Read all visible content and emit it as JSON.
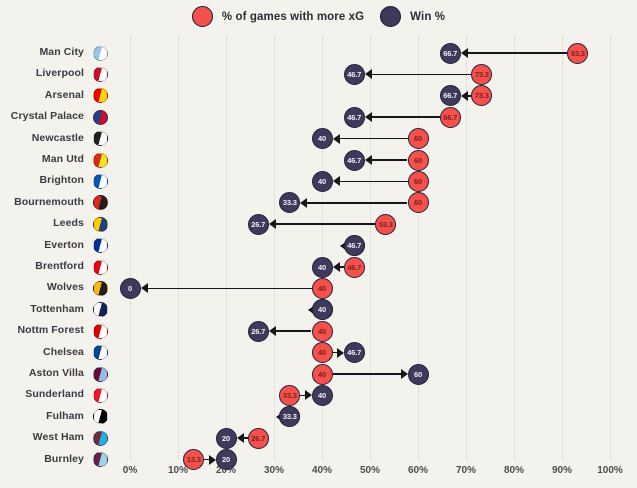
{
  "legend": {
    "items": [
      {
        "label": "% of games with more xG",
        "color": "#f4504c"
      },
      {
        "label": "Win %",
        "color": "#3e3a5c"
      }
    ]
  },
  "chart_data": {
    "type": "dumbbell",
    "title": "",
    "xlabel": "",
    "ylabel": "",
    "x_range": [
      0,
      100
    ],
    "x_ticks": [
      "0%",
      "10%",
      "20%",
      "30%",
      "40%",
      "50%",
      "60%",
      "70%",
      "80%",
      "90%",
      "100%"
    ],
    "grid": "dotted-vertical",
    "legend_position": "top-center",
    "series": [
      {
        "name": "% of games with more xG",
        "color": "#f4504c",
        "value_text_color": "#7e2022"
      },
      {
        "name": "Win %",
        "color": "#3e3a5c",
        "value_text_color": "#f3edf0"
      }
    ],
    "arrow_direction": "from xG% circle to Win% circle",
    "teams": [
      {
        "name": "Man City",
        "xg_more_pct": 93.3,
        "win_pct": 66.7,
        "badge": [
          "#98c5e9",
          "#ffffff"
        ]
      },
      {
        "name": "Liverpool",
        "xg_more_pct": 73.3,
        "win_pct": 46.7,
        "badge": [
          "#c8102e",
          "#ffffff"
        ]
      },
      {
        "name": "Arsenal",
        "xg_more_pct": 73.3,
        "win_pct": 66.7,
        "badge": [
          "#ef0107",
          "#ffd700"
        ]
      },
      {
        "name": "Crystal Palace",
        "xg_more_pct": 66.7,
        "win_pct": 46.7,
        "badge": [
          "#1b458f",
          "#c4122e"
        ]
      },
      {
        "name": "Newcastle",
        "xg_more_pct": 60,
        "win_pct": 40,
        "badge": [
          "#241f20",
          "#ffffff"
        ]
      },
      {
        "name": "Man Utd",
        "xg_more_pct": 60,
        "win_pct": 46.7,
        "badge": [
          "#da291c",
          "#fbe122"
        ]
      },
      {
        "name": "Brighton",
        "xg_more_pct": 60,
        "win_pct": 40,
        "badge": [
          "#0057b8",
          "#ffffff"
        ]
      },
      {
        "name": "Bournemouth",
        "xg_more_pct": 60,
        "win_pct": 33.3,
        "badge": [
          "#da291c",
          "#231f20"
        ]
      },
      {
        "name": "Leeds",
        "xg_more_pct": 53.3,
        "win_pct": 26.7,
        "badge": [
          "#ffcd00",
          "#1d428a"
        ]
      },
      {
        "name": "Everton",
        "xg_more_pct": 46.7,
        "win_pct": 46.7,
        "badge": [
          "#003399",
          "#ffffff"
        ]
      },
      {
        "name": "Brentford",
        "xg_more_pct": 46.7,
        "win_pct": 40,
        "badge": [
          "#e30613",
          "#ffffff"
        ]
      },
      {
        "name": "Wolves",
        "xg_more_pct": 40,
        "win_pct": 0,
        "badge": [
          "#fdb913",
          "#231f20"
        ]
      },
      {
        "name": "Tottenham",
        "xg_more_pct": 40,
        "win_pct": 40,
        "badge": [
          "#ffffff",
          "#132257"
        ]
      },
      {
        "name": "Nottm Forest",
        "xg_more_pct": 40,
        "win_pct": 26.7,
        "badge": [
          "#dd0000",
          "#ffffff"
        ]
      },
      {
        "name": "Chelsea",
        "xg_more_pct": 40,
        "win_pct": 46.7,
        "badge": [
          "#034694",
          "#ffffff"
        ]
      },
      {
        "name": "Aston Villa",
        "xg_more_pct": 40,
        "win_pct": 60,
        "badge": [
          "#670e36",
          "#95bfe5"
        ]
      },
      {
        "name": "Sunderland",
        "xg_more_pct": 33.3,
        "win_pct": 40,
        "badge": [
          "#eb172b",
          "#ffffff"
        ]
      },
      {
        "name": "Fulham",
        "xg_more_pct": 33.3,
        "win_pct": 33.3,
        "badge": [
          "#ffffff",
          "#000000"
        ]
      },
      {
        "name": "West Ham",
        "xg_more_pct": 26.7,
        "win_pct": 20,
        "badge": [
          "#7a263a",
          "#1bb1e7"
        ]
      },
      {
        "name": "Burnley",
        "xg_more_pct": 13.3,
        "win_pct": 20,
        "badge": [
          "#6c1d45",
          "#99d6ea"
        ]
      }
    ]
  },
  "colors": {
    "background": "#f4f2ed",
    "arrow": "#17151c",
    "gridline": "#d2d0c6",
    "axis_text": "#4c4a52",
    "team_text": "#3c3a42"
  }
}
